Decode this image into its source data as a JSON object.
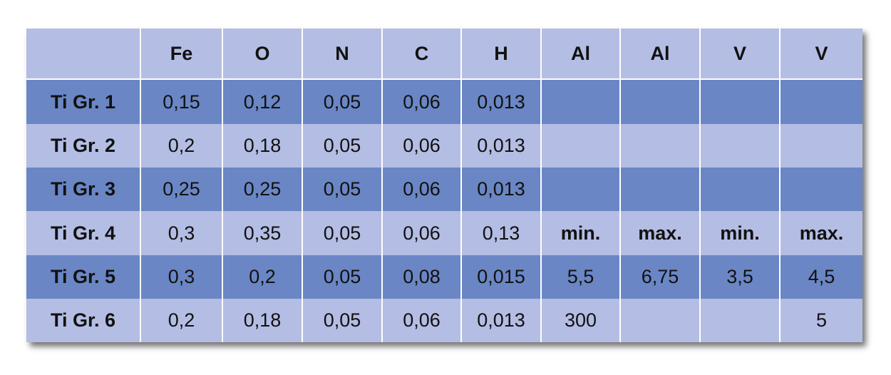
{
  "table": {
    "header": [
      null,
      "Fe",
      "O",
      "N",
      "C",
      "H",
      "Al",
      "Al",
      "V",
      "V"
    ],
    "rows": [
      [
        "Ti Gr. 1",
        "0,15",
        "0,12",
        "0,05",
        "0,06",
        "0,013",
        null,
        null,
        null,
        null
      ],
      [
        "Ti Gr. 2",
        "0,2",
        "0,18",
        "0,05",
        "0,06",
        "0,013",
        null,
        null,
        null,
        null
      ],
      [
        "Ti Gr. 3",
        "0,25",
        "0,25",
        "0,05",
        "0,06",
        "0,013",
        null,
        null,
        null,
        null
      ],
      [
        "Ti Gr. 4",
        "0,3",
        "0,35",
        "0,05",
        "0,06",
        "0,13",
        "min.",
        "max.",
        "min.",
        "max."
      ],
      [
        "Ti Gr. 5",
        "0,3",
        "0,2",
        "0,05",
        "0,08",
        "0,015",
        "5,5",
        "6,75",
        "3,5",
        "4,5"
      ],
      [
        "Ti Gr. 6",
        "0,2",
        "0,18",
        "0,05",
        "0,06",
        "0,013",
        "300",
        null,
        null,
        "5"
      ]
    ]
  }
}
